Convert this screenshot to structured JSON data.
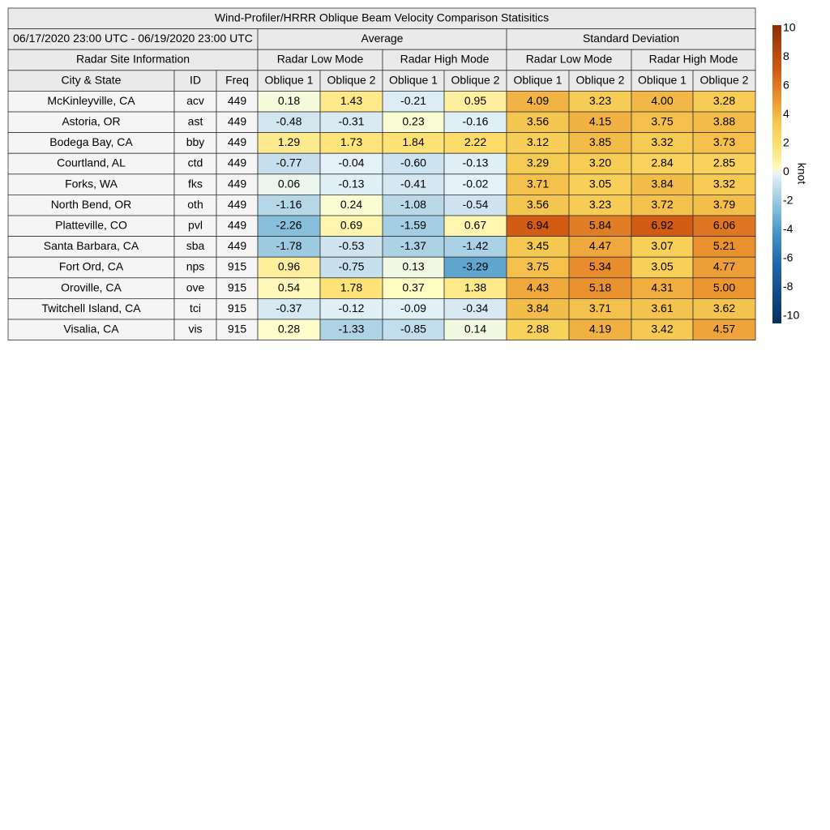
{
  "chart_data": {
    "type": "table",
    "title": "Wind-Profiler/HRRR Oblique Beam Velocity Comparison Statisitics",
    "date_range": "06/17/2020 23:00 UTC - 06/19/2020 23:00 UTC",
    "groups": [
      "Average",
      "Standard Deviation"
    ],
    "site_info_header": "Radar Site Information",
    "modes": [
      "Radar Low Mode",
      "Radar High Mode",
      "Radar Low Mode",
      "Radar High Mode"
    ],
    "columns": [
      "City & State",
      "ID",
      "Freq",
      "Oblique 1",
      "Oblique 2",
      "Oblique 1",
      "Oblique 2",
      "Oblique 1",
      "Oblique 2",
      "Oblique 1",
      "Oblique 2"
    ],
    "rows": [
      {
        "city": "McKinleyville, CA",
        "id": "acv",
        "freq": "449",
        "values": [
          0.18,
          1.43,
          -0.21,
          0.95,
          4.09,
          3.23,
          4.0,
          3.28
        ]
      },
      {
        "city": "Astoria, OR",
        "id": "ast",
        "freq": "449",
        "values": [
          -0.48,
          -0.31,
          0.23,
          -0.16,
          3.56,
          4.15,
          3.75,
          3.88
        ]
      },
      {
        "city": "Bodega Bay, CA",
        "id": "bby",
        "freq": "449",
        "values": [
          1.29,
          1.73,
          1.84,
          2.22,
          3.12,
          3.85,
          3.32,
          3.73
        ]
      },
      {
        "city": "Courtland, AL",
        "id": "ctd",
        "freq": "449",
        "values": [
          -0.77,
          -0.04,
          -0.6,
          -0.13,
          3.29,
          3.2,
          2.84,
          2.85
        ]
      },
      {
        "city": "Forks, WA",
        "id": "fks",
        "freq": "449",
        "values": [
          0.06,
          -0.13,
          -0.41,
          -0.02,
          3.71,
          3.05,
          3.84,
          3.32
        ]
      },
      {
        "city": "North Bend, OR",
        "id": "oth",
        "freq": "449",
        "values": [
          -1.16,
          0.24,
          -1.08,
          -0.54,
          3.56,
          3.23,
          3.72,
          3.79
        ]
      },
      {
        "city": "Platteville, CO",
        "id": "pvl",
        "freq": "449",
        "values": [
          -2.26,
          0.69,
          -1.59,
          0.67,
          6.94,
          5.84,
          6.92,
          6.06
        ]
      },
      {
        "city": "Santa Barbara, CA",
        "id": "sba",
        "freq": "449",
        "values": [
          -1.78,
          -0.53,
          -1.37,
          -1.42,
          3.45,
          4.47,
          3.07,
          5.21
        ]
      },
      {
        "city": "Fort Ord, CA",
        "id": "nps",
        "freq": "915",
        "values": [
          0.96,
          -0.75,
          0.13,
          -3.29,
          3.75,
          5.34,
          3.05,
          4.77
        ]
      },
      {
        "city": "Oroville, CA",
        "id": "ove",
        "freq": "915",
        "values": [
          0.54,
          1.78,
          0.37,
          1.38,
          4.43,
          5.18,
          4.31,
          5.0
        ]
      },
      {
        "city": "Twitchell Island, CA",
        "id": "tci",
        "freq": "915",
        "values": [
          -0.37,
          -0.12,
          -0.09,
          -0.34,
          3.84,
          3.71,
          3.61,
          3.62
        ]
      },
      {
        "city": "Visalia, CA",
        "id": "vis",
        "freq": "915",
        "values": [
          0.28,
          -1.33,
          -0.85,
          0.14,
          2.88,
          4.19,
          3.42,
          4.57
        ]
      }
    ],
    "colorbar": {
      "label": "knot",
      "range": [
        -10,
        10
      ],
      "ticks": [
        10,
        8,
        6,
        4,
        2,
        0,
        -2,
        -4,
        -6,
        -8,
        -10
      ],
      "colors": [
        "#053061",
        "#2166ac",
        "#4393c3",
        "#92c5de",
        "#d1e5f0",
        "#ffffbf",
        "#fee090",
        "#fdae61",
        "#f46d43",
        "#d6604d",
        "#b2182b",
        "#8c2d04"
      ]
    }
  }
}
